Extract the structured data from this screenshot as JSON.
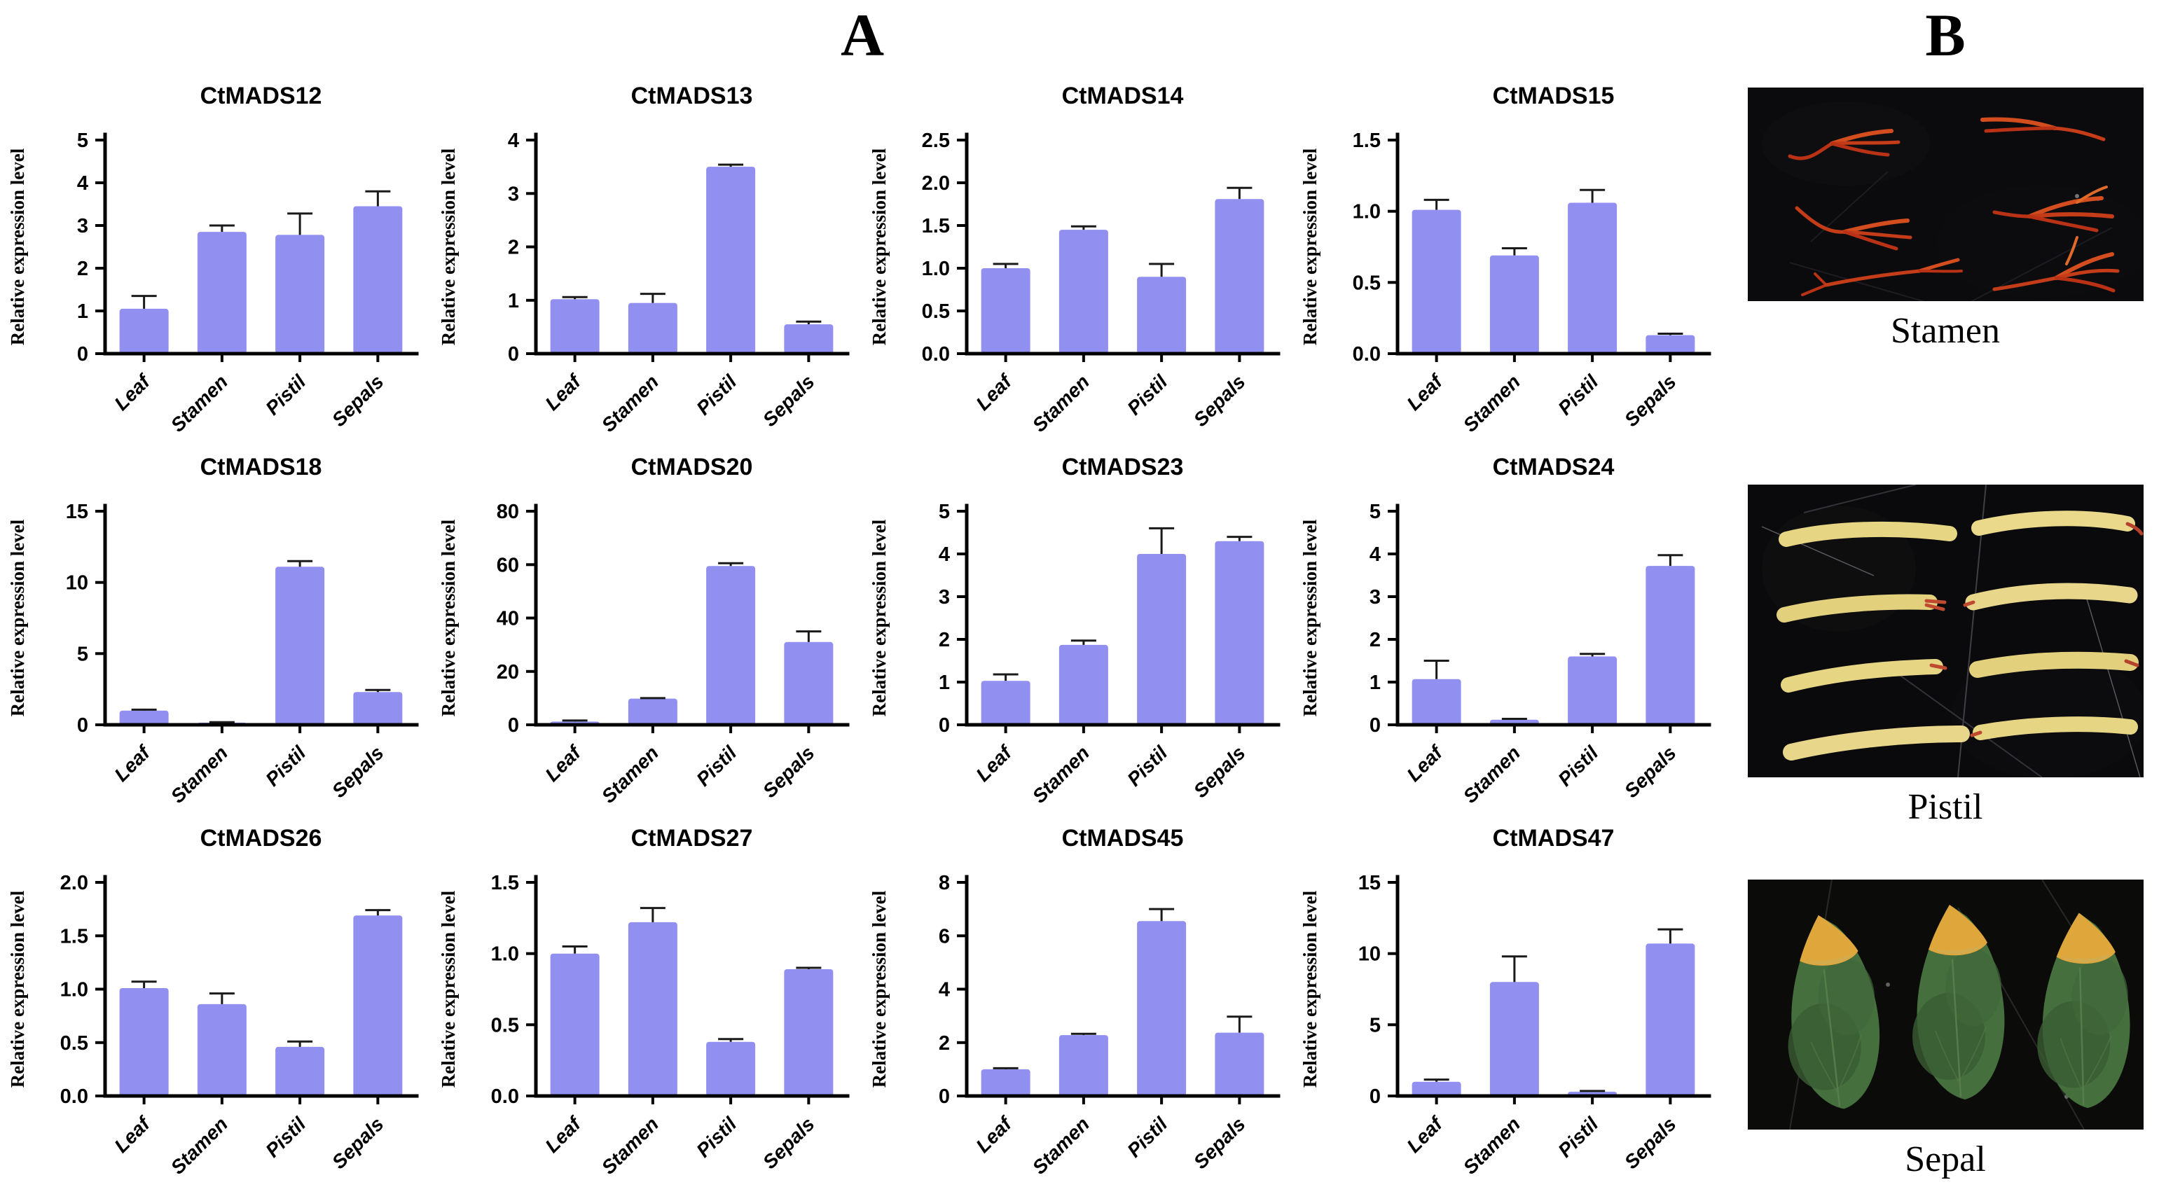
{
  "figure": {
    "panel_a_label": "A",
    "panel_b_label": "B"
  },
  "style": {
    "bar_color": "#918ff0",
    "bar_color_light": "#a5a4f4",
    "axis_color": "#000000",
    "error_color": "#1a1a1a",
    "photo_bg": "#0b0b0d",
    "stamen_red": "#c43c18",
    "pistil_yellow": "#e6d583",
    "sepal_green": "#466f3e",
    "sepal_tip_orange": "#dfa63c"
  },
  "chart_data": [
    {
      "type": "bar",
      "title": "CtMADS12",
      "xlabel": "",
      "ylabel": "Relative expression level",
      "categories": [
        "Leaf",
        "Stamen",
        "Pistil",
        "Sepals"
      ],
      "values": [
        1.05,
        2.85,
        2.78,
        3.45
      ],
      "errors": [
        0.3,
        0.15,
        0.5,
        0.35
      ],
      "ylim": [
        0,
        5
      ],
      "yticks": [
        "0",
        "1",
        "2",
        "3",
        "4",
        "5"
      ],
      "grid": false,
      "legend": "none"
    },
    {
      "type": "bar",
      "title": "CtMADS13",
      "xlabel": "",
      "ylabel": "Relative expression level",
      "categories": [
        "Leaf",
        "Stamen",
        "Pistil",
        "Sepals"
      ],
      "values": [
        1.02,
        0.95,
        3.5,
        0.55
      ],
      "errors": [
        0.04,
        0.17,
        0.04,
        0.05
      ],
      "ylim": [
        0,
        4
      ],
      "yticks": [
        "0",
        "1",
        "2",
        "3",
        "4"
      ],
      "grid": false,
      "legend": "none"
    },
    {
      "type": "bar",
      "title": "CtMADS14",
      "xlabel": "",
      "ylabel": "Relative expression level",
      "categories": [
        "Leaf",
        "Stamen",
        "Pistil",
        "Sepals"
      ],
      "values": [
        1.0,
        1.45,
        0.9,
        1.81
      ],
      "errors": [
        0.05,
        0.04,
        0.15,
        0.13
      ],
      "ylim": [
        0,
        2.5
      ],
      "yticks": [
        "0.0",
        "0.5",
        "1.0",
        "1.5",
        "2.0",
        "2.5"
      ],
      "grid": false,
      "legend": "none"
    },
    {
      "type": "bar",
      "title": "CtMADS15",
      "xlabel": "",
      "ylabel": "Relative expression level",
      "categories": [
        "Leaf",
        "Stamen",
        "Pistil",
        "Sepals"
      ],
      "values": [
        1.01,
        0.69,
        1.06,
        0.13
      ],
      "errors": [
        0.07,
        0.05,
        0.09,
        0.01
      ],
      "ylim": [
        0,
        1.5
      ],
      "yticks": [
        "0.0",
        "0.5",
        "1.0",
        "1.5"
      ],
      "grid": false,
      "legend": "none"
    },
    {
      "type": "bar",
      "title": "CtMADS18",
      "xlabel": "",
      "ylabel": "Relative expression level",
      "categories": [
        "Leaf",
        "Stamen",
        "Pistil",
        "Sepals"
      ],
      "values": [
        1.0,
        0.15,
        11.1,
        2.3
      ],
      "errors": [
        0.06,
        0.03,
        0.4,
        0.15
      ],
      "ylim": [
        0,
        15
      ],
      "yticks": [
        "0",
        "5",
        "10",
        "15"
      ],
      "grid": false,
      "legend": "none"
    },
    {
      "type": "bar",
      "title": "CtMADS20",
      "xlabel": "",
      "ylabel": "Relative expression level",
      "categories": [
        "Leaf",
        "Stamen",
        "Pistil",
        "Sepals"
      ],
      "values": [
        1.2,
        9.8,
        59.5,
        31.0
      ],
      "errors": [
        0.4,
        0.2,
        1.0,
        4.0
      ],
      "ylim": [
        0,
        80
      ],
      "yticks": [
        "0",
        "20",
        "40",
        "60",
        "80"
      ],
      "grid": false,
      "legend": "none"
    },
    {
      "type": "bar",
      "title": "CtMADS23",
      "xlabel": "",
      "ylabel": "Relative expression level",
      "categories": [
        "Leaf",
        "Stamen",
        "Pistil",
        "Sepals"
      ],
      "values": [
        1.03,
        1.87,
        4.0,
        4.3
      ],
      "errors": [
        0.15,
        0.1,
        0.6,
        0.1
      ],
      "ylim": [
        0,
        5
      ],
      "yticks": [
        "0",
        "1",
        "2",
        "3",
        "4",
        "5"
      ],
      "grid": false,
      "legend": "none"
    },
    {
      "type": "bar",
      "title": "CtMADS24",
      "xlabel": "",
      "ylabel": "Relative expression level",
      "categories": [
        "Leaf",
        "Stamen",
        "Pistil",
        "Sepals"
      ],
      "values": [
        1.07,
        0.12,
        1.6,
        3.72
      ],
      "errors": [
        0.43,
        0.02,
        0.06,
        0.25
      ],
      "ylim": [
        0,
        5
      ],
      "yticks": [
        "0",
        "1",
        "2",
        "3",
        "4",
        "5"
      ],
      "grid": false,
      "legend": "none"
    },
    {
      "type": "bar",
      "title": "CtMADS26",
      "xlabel": "",
      "ylabel": "Relative expression level",
      "categories": [
        "Leaf",
        "Stamen",
        "Pistil",
        "Sepals"
      ],
      "values": [
        1.01,
        0.86,
        0.46,
        1.69
      ],
      "errors": [
        0.06,
        0.1,
        0.05,
        0.05
      ],
      "ylim": [
        0,
        2
      ],
      "yticks": [
        "0.0",
        "0.5",
        "1.0",
        "1.5",
        "2.0"
      ],
      "grid": false,
      "legend": "none"
    },
    {
      "type": "bar",
      "title": "CtMADS27",
      "xlabel": "",
      "ylabel": "Relative expression level",
      "categories": [
        "Leaf",
        "Stamen",
        "Pistil",
        "Sepals"
      ],
      "values": [
        1.0,
        1.22,
        0.38,
        0.89
      ],
      "errors": [
        0.05,
        0.1,
        0.02,
        0.01
      ],
      "ylim": [
        0,
        1.5
      ],
      "yticks": [
        "0.0",
        "0.5",
        "1.0",
        "1.5"
      ],
      "grid": false,
      "legend": "none"
    },
    {
      "type": "bar",
      "title": "CtMADS45",
      "xlabel": "",
      "ylabel": "Relative expression level",
      "categories": [
        "Leaf",
        "Stamen",
        "Pistil",
        "Sepals"
      ],
      "values": [
        1.0,
        2.28,
        6.55,
        2.37
      ],
      "errors": [
        0.04,
        0.05,
        0.45,
        0.6
      ],
      "ylim": [
        0,
        8
      ],
      "yticks": [
        "0",
        "2",
        "4",
        "6",
        "8"
      ],
      "grid": false,
      "legend": "none"
    },
    {
      "type": "bar",
      "title": "CtMADS47",
      "xlabel": "",
      "ylabel": "Relative expression level",
      "categories": [
        "Leaf",
        "Stamen",
        "Pistil",
        "Sepals"
      ],
      "values": [
        1.0,
        8.0,
        0.3,
        10.7
      ],
      "errors": [
        0.15,
        1.8,
        0.05,
        1.0
      ],
      "ylim": [
        0,
        15
      ],
      "yticks": [
        "0",
        "5",
        "10",
        "15"
      ],
      "grid": false,
      "legend": "none"
    }
  ],
  "panel_b": {
    "items": [
      {
        "label": "Stamen",
        "photo": "red-stamens-on-black"
      },
      {
        "label": "Pistil",
        "photo": "yellow-pistils-on-black"
      },
      {
        "label": "Sepal",
        "photo": "green-sepals-on-black"
      }
    ]
  }
}
